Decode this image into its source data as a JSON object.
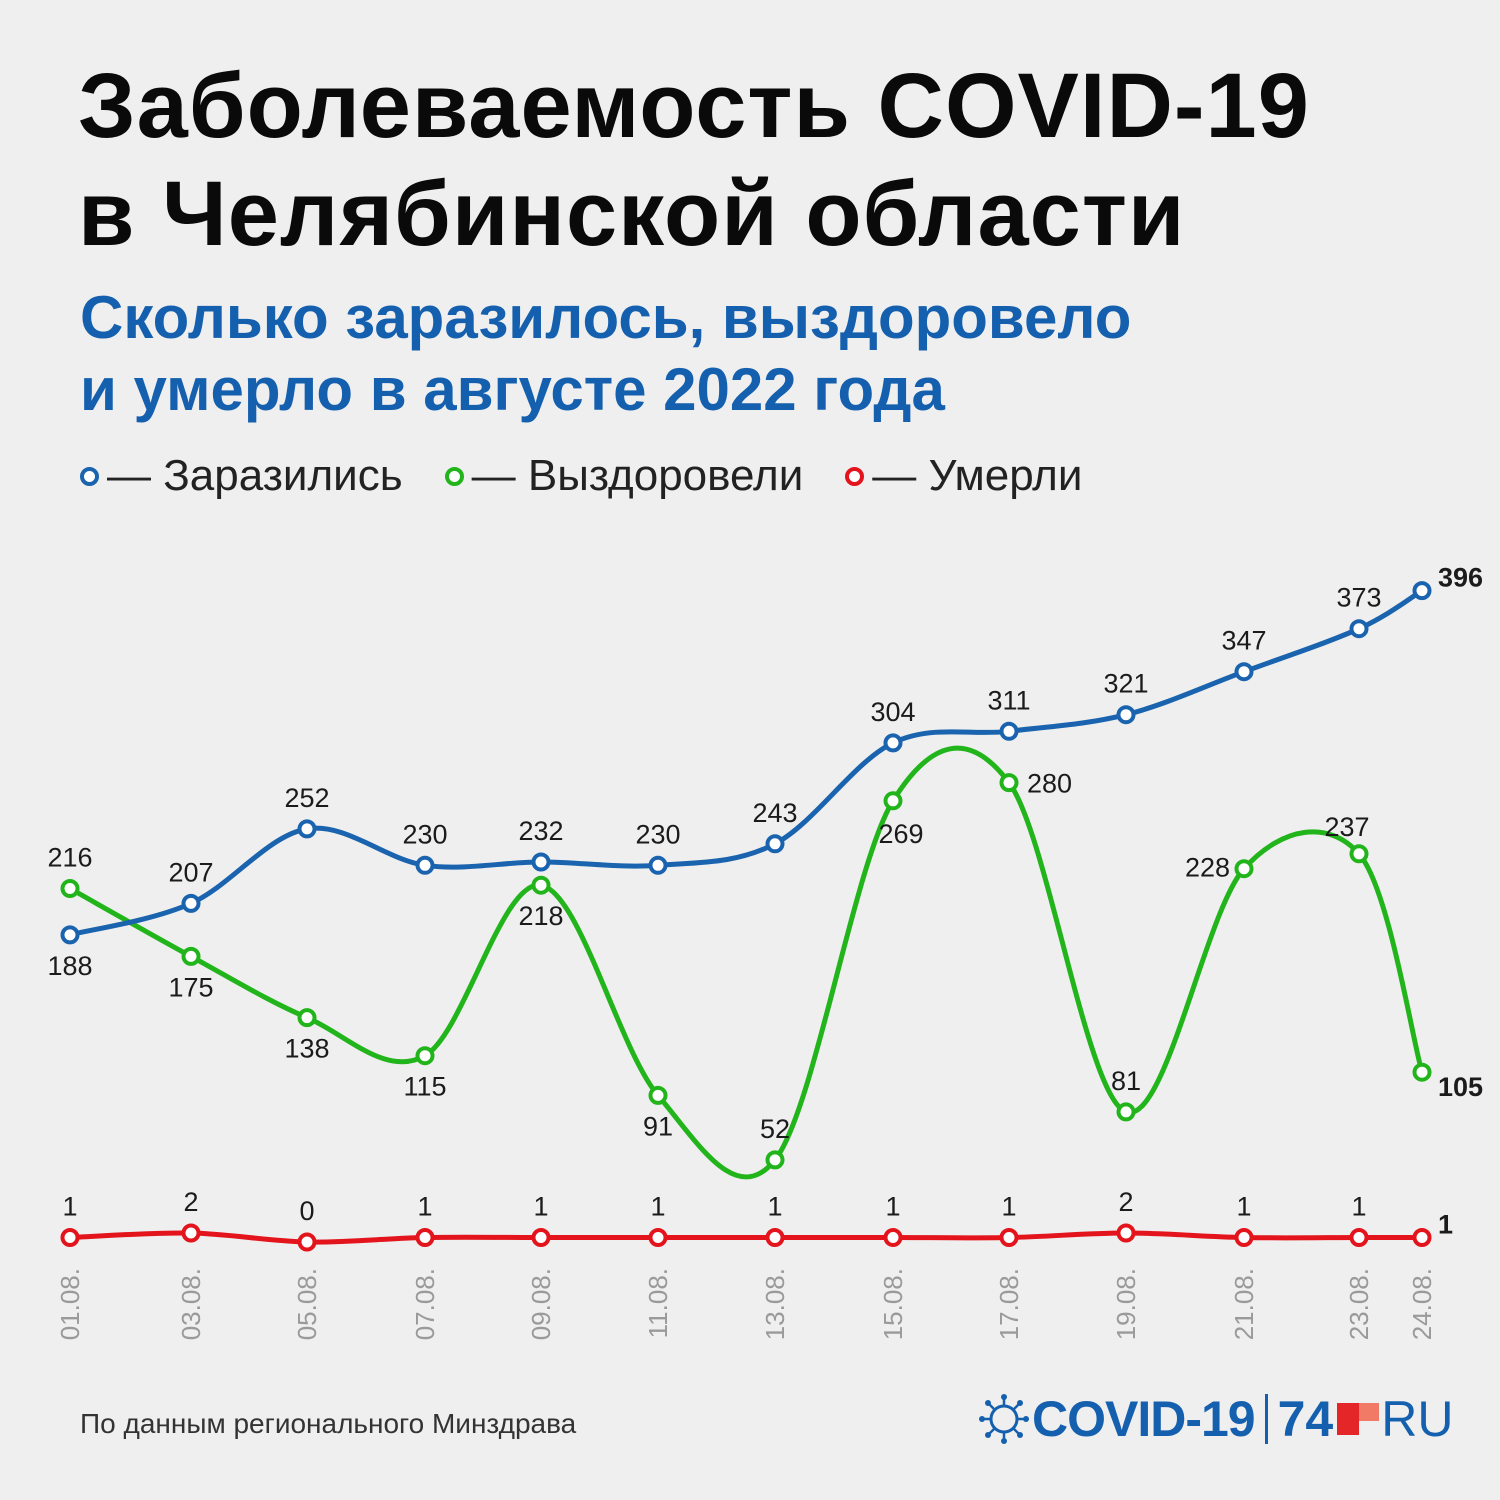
{
  "title_lines": [
    "Заболеваемость COVID-19",
    "в Челябинской области"
  ],
  "subtitle_lines": [
    "Сколько заразилось, выздоровело",
    "и умерло в августе 2022 года"
  ],
  "legend": [
    {
      "label": "— Заразились",
      "color": "#1a63ae"
    },
    {
      "label": "— Выздоровели",
      "color": "#22b51b"
    },
    {
      "label": "— Умерли",
      "color": "#e3141c"
    }
  ],
  "source": "По данным регионального Минздрава",
  "brand": {
    "covid": "COVID-19",
    "num": "74",
    "ru": "RU"
  },
  "chart_data": {
    "type": "line",
    "categories": [
      "01.08.",
      "03.08.",
      "05.08.",
      "07.08.",
      "09.08.",
      "11.08.",
      "13.08.",
      "15.08.",
      "17.08.",
      "19.08.",
      "21.08.",
      "23.08.",
      "24.08."
    ],
    "series": [
      {
        "name": "Заразились",
        "color": "#1a63ae",
        "values": [
          188,
          207,
          252,
          230,
          232,
          230,
          243,
          304,
          311,
          321,
          347,
          373,
          396
        ],
        "labels": [
          "188",
          "207",
          "252",
          "230",
          "232",
          "230",
          "243",
          "304",
          "311",
          "321",
          "347",
          "373",
          "396"
        ]
      },
      {
        "name": "Выздоровели",
        "color": "#22b51b",
        "values": [
          216,
          175,
          138,
          115,
          218,
          91,
          52,
          269,
          280,
          81,
          228,
          237,
          105
        ],
        "labels": [
          "216",
          "175",
          "138",
          "115",
          "218",
          "91",
          "52",
          "269",
          "280",
          "81",
          "228",
          "237",
          "105"
        ]
      },
      {
        "name": "Умерли",
        "color": "#e3141c",
        "values": [
          1,
          2,
          0,
          1,
          1,
          1,
          1,
          1,
          1,
          2,
          1,
          1,
          1
        ],
        "labels": [
          "1",
          "2",
          "0",
          "1",
          "1",
          "1",
          "1",
          "1",
          "1",
          "2",
          "1",
          "1",
          "1"
        ]
      }
    ],
    "grid": false,
    "legend_position": "top-left"
  }
}
